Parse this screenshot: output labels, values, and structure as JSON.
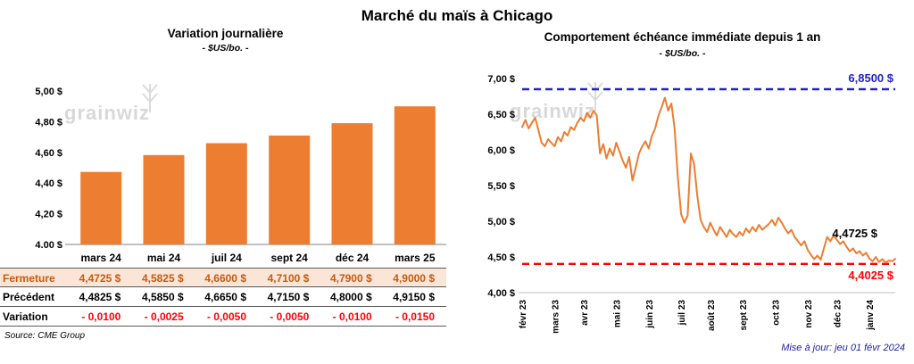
{
  "page": {
    "title": "Marché du maïs à Chicago",
    "source": "Source: CME Group",
    "updated": "Mise à jour: jeu 01 févr 2024",
    "watermark": "grainwiz"
  },
  "colors": {
    "accent_orange": "#ED7D31",
    "close_row_bg": "#FBE5D6",
    "close_row_text": "#C55A11",
    "variation_text": "#FF0000",
    "high_line_blue": "#2222CC",
    "low_line_red": "#FF0000",
    "update_text": "#2222AA"
  },
  "chart_data": [
    {
      "type": "bar",
      "title": "Variation journalière",
      "subtitle": "- $US/bo. -",
      "categories": [
        "mars 24",
        "mai 24",
        "juil 24",
        "sept 24",
        "déc 24",
        "mars 25"
      ],
      "values": [
        4.4725,
        4.5825,
        4.66,
        4.71,
        4.79,
        4.9
      ],
      "ylim": [
        4.0,
        5.0
      ],
      "yticks": [
        4.0,
        4.2,
        4.4,
        4.6,
        4.8,
        5.0
      ],
      "ytick_labels": [
        "4,00 $",
        "4,20 $",
        "4,40 $",
        "4,60 $",
        "4,80 $",
        "5,00 $"
      ],
      "bar_color": "#ED7D31",
      "grid": false,
      "legend": "none"
    },
    {
      "type": "line",
      "title": "Comportement échéance immédiate depuis 1 an",
      "subtitle": "- $US/bo. -",
      "x_labels": [
        "févr 23",
        "mars 23",
        "avr 23",
        "mai 23",
        "juin 23",
        "juil 23",
        "août 23",
        "sept 23",
        "oct 23",
        "nov 23",
        "déc 23",
        "janv 24"
      ],
      "values": [
        6.32,
        6.42,
        6.3,
        6.38,
        6.45,
        6.28,
        6.1,
        6.05,
        6.15,
        6.1,
        6.05,
        6.18,
        6.12,
        6.25,
        6.2,
        6.32,
        6.28,
        6.38,
        6.45,
        6.4,
        6.52,
        6.45,
        6.55,
        6.48,
        5.95,
        6.08,
        5.88,
        6.02,
        5.92,
        6.1,
        5.98,
        5.85,
        5.75,
        5.9,
        5.57,
        5.75,
        5.95,
        6.05,
        6.12,
        6.02,
        6.2,
        6.3,
        6.48,
        6.6,
        6.73,
        6.55,
        6.65,
        6.3,
        5.6,
        5.1,
        4.98,
        5.08,
        5.95,
        5.8,
        5.35,
        5.02,
        4.92,
        4.85,
        4.98,
        4.88,
        4.8,
        4.92,
        4.85,
        4.78,
        4.88,
        4.82,
        4.78,
        4.85,
        4.8,
        4.9,
        4.84,
        4.92,
        4.86,
        4.95,
        4.88,
        4.92,
        4.96,
        5.02,
        4.94,
        5.05,
        4.98,
        4.9,
        4.83,
        4.88,
        4.78,
        4.72,
        4.66,
        4.72,
        4.6,
        4.53,
        4.47,
        4.52,
        4.46,
        4.62,
        4.78,
        4.72,
        4.8,
        4.74,
        4.68,
        4.72,
        4.64,
        4.58,
        4.62,
        4.55,
        4.58,
        4.52,
        4.56,
        4.48,
        4.44,
        4.5,
        4.43,
        4.47,
        4.42,
        4.45,
        4.44,
        4.4725
      ],
      "ylim": [
        4.0,
        7.0
      ],
      "ytick_labels": [
        "4,00 $",
        "4,50 $",
        "5,00 $",
        "5,50 $",
        "6,00 $",
        "6,50 $",
        "7,00 $"
      ],
      "line_color": "#ED7D31",
      "grid": false,
      "legend": "none",
      "annotations": {
        "high": {
          "value": 6.85,
          "label": "6,8500 $",
          "color": "#2222CC"
        },
        "low": {
          "value": 4.4025,
          "label": "4,4025 $",
          "color": "#FF0000"
        },
        "last": {
          "value": 4.4725,
          "label": "4,4725 $",
          "color": "#000000"
        }
      }
    }
  ],
  "table": {
    "columns": [
      "mars 24",
      "mai 24",
      "juil 24",
      "sept 24",
      "déc 24",
      "mars 25"
    ],
    "rows": [
      {
        "label": "Fermeture",
        "style": "close",
        "values": [
          "4,4725 $",
          "4,5825 $",
          "4,6600 $",
          "4,7100 $",
          "4,7900 $",
          "4,9000 $"
        ]
      },
      {
        "label": "Précédent",
        "style": "prev",
        "values": [
          "4,4825 $",
          "4,5850 $",
          "4,6650 $",
          "4,7150 $",
          "4,8000 $",
          "4,9150 $"
        ]
      },
      {
        "label": "Variation",
        "style": "vari",
        "values": [
          "- 0,0100",
          "- 0,0025",
          "- 0,0050",
          "- 0,0050",
          "- 0,0100",
          "- 0,0150"
        ]
      }
    ]
  }
}
